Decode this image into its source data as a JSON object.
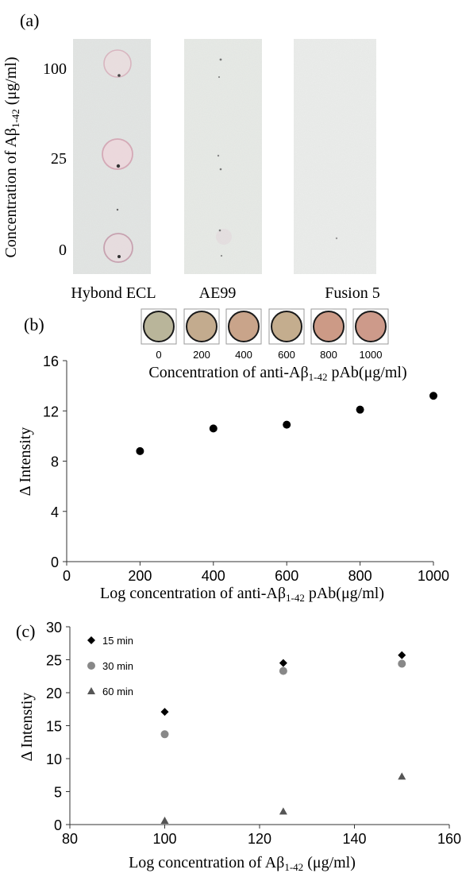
{
  "panel_a": {
    "label": "(a)",
    "ylabel_main": "Concentration of A",
    "ylabel_beta": "β",
    "ylabel_sub": "1-42",
    "ylabel_unit": " (μg/ml)",
    "concentrations": [
      "100",
      "25",
      "0"
    ],
    "membranes": [
      "Hybond ECL",
      "AE99",
      "Fusion 5"
    ]
  },
  "panel_b": {
    "label": "(b)",
    "swatch_labels": [
      "0",
      "200",
      "400",
      "600",
      "800",
      "1000"
    ],
    "swatch_colors": [
      "#b9b59a",
      "#c3ab8e",
      "#c9a48a",
      "#c4ad8e",
      "#cc9a86",
      "#cd9a8a"
    ],
    "swatch_caption_main": "Concentration of anti-A",
    "swatch_caption_beta": "β",
    "swatch_caption_sub": "1-42",
    "swatch_caption_unit": " pAb(μg/ml)"
  },
  "panel_c": {
    "label": "(c)"
  },
  "chart_data": [
    {
      "type": "scatter",
      "title": "",
      "xlabel": "Log concentration of anti-Aβ1-42 pAb(μg/ml)",
      "xlabel_main": "Log concentration of anti-A",
      "xlabel_beta": "β",
      "xlabel_sub": "1-42",
      "xlabel_unit": " pAb(μg/ml)",
      "ylabel": "Δ Intensity",
      "xlim": [
        0,
        1000
      ],
      "ylim": [
        0,
        16
      ],
      "xticks": [
        0,
        200,
        400,
        600,
        800,
        1000
      ],
      "yticks": [
        0,
        4,
        8,
        12,
        16
      ],
      "grid": false,
      "series": [
        {
          "color": "#000000",
          "marker": "circle",
          "x": [
            200,
            400,
            600,
            800,
            1000
          ],
          "y": [
            8.8,
            10.6,
            10.9,
            12.1,
            13.2
          ]
        }
      ]
    },
    {
      "type": "scatter",
      "title": "",
      "xlabel": "Log concentration of Aβ1-42 (μg/ml)",
      "xlabel_main": "Log concentration of A",
      "xlabel_beta": "β",
      "xlabel_sub": "1-42",
      "xlabel_unit": " (μg/ml)",
      "ylabel": "Δ Intenstiy",
      "xlim": [
        80,
        160
      ],
      "ylim": [
        0,
        30
      ],
      "xticks": [
        80,
        100,
        120,
        140,
        160
      ],
      "yticks": [
        0,
        5,
        10,
        15,
        20,
        25,
        30
      ],
      "grid": false,
      "legend_position": "top-left",
      "series": [
        {
          "name": "15 min",
          "color": "#000000",
          "marker": "diamond",
          "x": [
            100,
            125,
            150
          ],
          "y": [
            17.1,
            24.5,
            25.7
          ]
        },
        {
          "name": "30 min",
          "color": "#888888",
          "marker": "circle",
          "x": [
            100,
            125,
            150
          ],
          "y": [
            13.7,
            23.3,
            24.4
          ]
        },
        {
          "name": "60 min",
          "color": "#555555",
          "marker": "triangle",
          "x": [
            100,
            125,
            150
          ],
          "y": [
            0.6,
            2.0,
            7.3
          ]
        }
      ]
    }
  ]
}
